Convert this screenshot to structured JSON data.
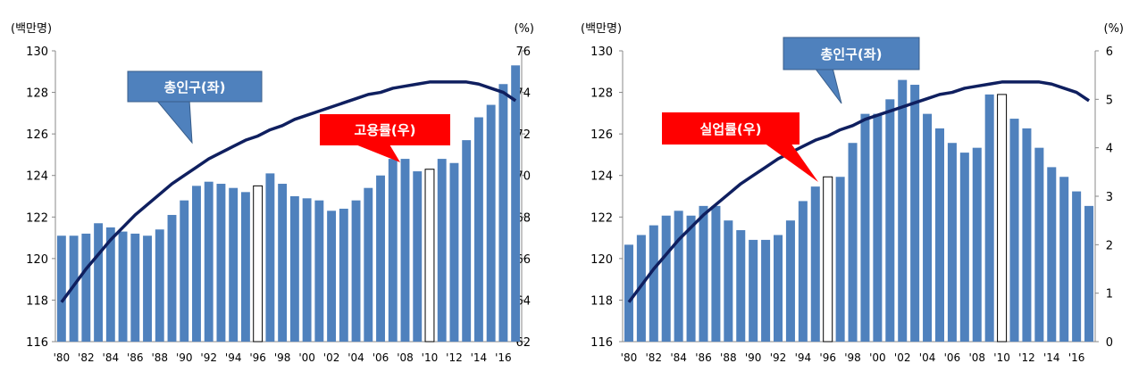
{
  "colors": {
    "bar": "#4F81BD",
    "bar_highlight": "#FFFFFF",
    "line": "#0F1F5F",
    "callout_blue": "#4F81BD",
    "callout_red": "#FF0000"
  },
  "chart_data": [
    {
      "type": "bar",
      "left_unit": "(백만명)",
      "right_unit": "(%)",
      "x": [
        "'80",
        "'81",
        "'82",
        "'83",
        "'84",
        "'85",
        "'86",
        "'87",
        "'88",
        "'89",
        "'90",
        "'91",
        "'92",
        "'93",
        "'94",
        "'95",
        "'96",
        "'97",
        "'98",
        "'99",
        "'00",
        "'01",
        "'02",
        "'03",
        "'04",
        "'05",
        "'06",
        "'07",
        "'08",
        "'09",
        "'10",
        "'11",
        "'12",
        "'13",
        "'14",
        "'15",
        "'16",
        "'17"
      ],
      "x_tick_labels": [
        "'80",
        "'82",
        "'84",
        "'86",
        "'88",
        "'90",
        "'92",
        "'94",
        "'96",
        "'98",
        "'00",
        "'02",
        "'04",
        "'06",
        "'08",
        "'10",
        "'12",
        "'14",
        "'16"
      ],
      "highlight": [
        "'96",
        "'10"
      ],
      "ylim_left": [
        116,
        130
      ],
      "yticks_left": [
        "130",
        "128",
        "126",
        "124",
        "122",
        "120",
        "118",
        "116"
      ],
      "ylim_right": [
        62,
        76
      ],
      "yticks_right": [
        "76",
        "74",
        "72",
        "70",
        "68",
        "66",
        "64",
        "62"
      ],
      "series": [
        {
          "name": "총인구(좌)",
          "type": "line",
          "axis": "left",
          "values": [
            117.9,
            118.7,
            119.5,
            120.2,
            120.9,
            121.5,
            122.1,
            122.6,
            123.1,
            123.6,
            124.0,
            124.4,
            124.8,
            125.1,
            125.4,
            125.7,
            125.9,
            126.2,
            126.4,
            126.7,
            126.9,
            127.1,
            127.3,
            127.5,
            127.7,
            127.9,
            128.0,
            128.2,
            128.3,
            128.4,
            128.5,
            128.5,
            128.5,
            128.5,
            128.4,
            128.2,
            128.0,
            127.6
          ]
        },
        {
          "name": "고용률(우)",
          "type": "bar",
          "axis": "right",
          "values": [
            67.1,
            67.1,
            67.2,
            67.7,
            67.5,
            67.3,
            67.2,
            67.1,
            67.4,
            68.1,
            68.8,
            69.5,
            69.7,
            69.6,
            69.4,
            69.2,
            69.5,
            70.1,
            69.6,
            69.0,
            68.9,
            68.8,
            68.3,
            68.4,
            68.8,
            69.4,
            70.0,
            70.8,
            70.8,
            70.2,
            70.3,
            70.8,
            70.6,
            71.7,
            72.8,
            73.4,
            74.4,
            75.3
          ]
        }
      ],
      "callouts": [
        "총인구(좌)",
        "고용률(우)"
      ]
    },
    {
      "type": "bar",
      "left_unit": "(백만명)",
      "right_unit": "(%)",
      "x": [
        "'80",
        "'81",
        "'82",
        "'83",
        "'84",
        "'85",
        "'86",
        "'87",
        "'88",
        "'89",
        "'90",
        "'91",
        "'92",
        "'93",
        "'94",
        "'95",
        "'96",
        "'97",
        "'98",
        "'99",
        "'00",
        "'01",
        "'02",
        "'03",
        "'04",
        "'05",
        "'06",
        "'07",
        "'08",
        "'09",
        "'10",
        "'11",
        "'12",
        "'13",
        "'14",
        "'15",
        "'16",
        "'17"
      ],
      "x_tick_labels": [
        "'80",
        "'82",
        "'84",
        "'86",
        "'88",
        "'90",
        "'92",
        "'94",
        "'96",
        "'98",
        "'00",
        "'02",
        "'04",
        "'06",
        "'08",
        "'10",
        "'12",
        "'14",
        "'16"
      ],
      "highlight": [
        "'96",
        "'10"
      ],
      "ylim_left": [
        116,
        130
      ],
      "yticks_left": [
        "130",
        "128",
        "126",
        "124",
        "122",
        "120",
        "118",
        "116"
      ],
      "ylim_right": [
        0,
        6
      ],
      "yticks_right": [
        "6",
        "5",
        "4",
        "3",
        "2",
        "1",
        "0"
      ],
      "series": [
        {
          "name": "총인구(좌)",
          "type": "line",
          "axis": "left",
          "values": [
            117.9,
            118.7,
            119.5,
            120.2,
            120.9,
            121.5,
            122.1,
            122.6,
            123.1,
            123.6,
            124.0,
            124.4,
            124.8,
            125.1,
            125.4,
            125.7,
            125.9,
            126.2,
            126.4,
            126.7,
            126.9,
            127.1,
            127.3,
            127.5,
            127.7,
            127.9,
            128.0,
            128.2,
            128.3,
            128.4,
            128.5,
            128.5,
            128.5,
            128.5,
            128.4,
            128.2,
            128.0,
            127.6
          ]
        },
        {
          "name": "실업률(우)",
          "type": "bar",
          "axis": "right",
          "values": [
            2.0,
            2.2,
            2.4,
            2.6,
            2.7,
            2.6,
            2.8,
            2.8,
            2.5,
            2.3,
            2.1,
            2.1,
            2.2,
            2.5,
            2.9,
            3.2,
            3.4,
            3.4,
            4.1,
            4.7,
            4.7,
            5.0,
            5.4,
            5.3,
            4.7,
            4.4,
            4.1,
            3.9,
            4.0,
            5.1,
            5.1,
            4.6,
            4.4,
            4.0,
            3.6,
            3.4,
            3.1,
            2.8
          ]
        }
      ],
      "callouts": [
        "총인구(좌)",
        "실업률(우)"
      ]
    }
  ]
}
